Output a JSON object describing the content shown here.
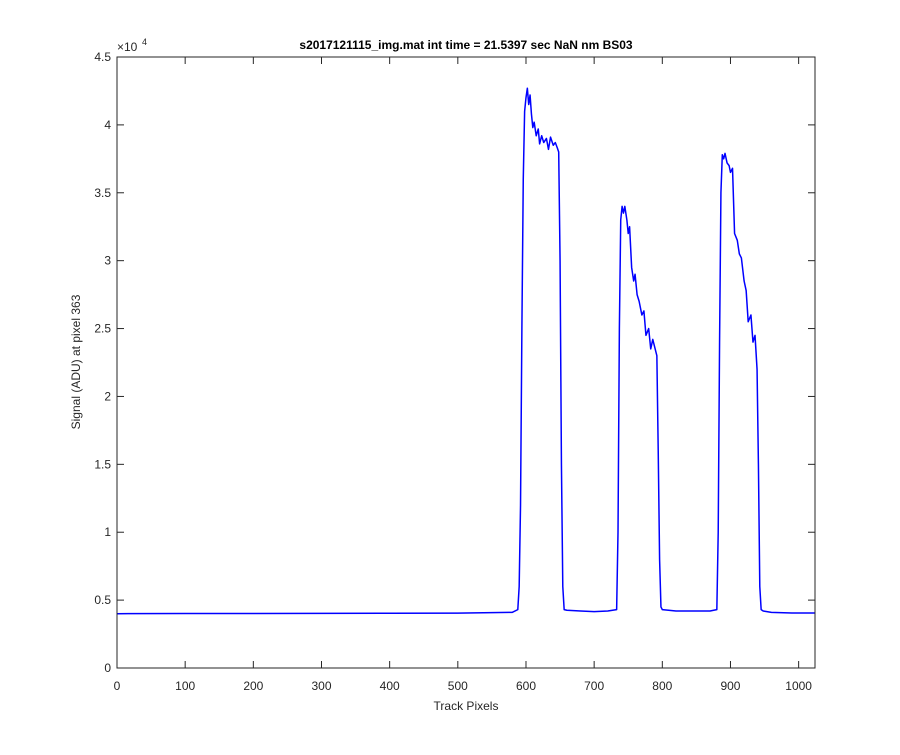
{
  "chart_data": {
    "type": "line",
    "title": "s2017121115_img.mat int time = 21.5397 sec  NaN nm BS03",
    "xlabel": "Track Pixels",
    "ylabel": "Signal (ADU) at pixel 363",
    "exponent_label": "×10",
    "exponent_power": "4",
    "xlim": [
      0,
      1024
    ],
    "ylim": [
      0,
      45000
    ],
    "x_ticks": [
      0,
      100,
      200,
      300,
      400,
      500,
      600,
      700,
      800,
      900,
      1000
    ],
    "x_tick_labels": [
      "0",
      "100",
      "200",
      "300",
      "400",
      "500",
      "600",
      "700",
      "800",
      "900",
      "1000"
    ],
    "y_ticks": [
      0,
      5000,
      10000,
      15000,
      20000,
      25000,
      30000,
      35000,
      40000,
      45000
    ],
    "y_tick_labels": [
      "0",
      "0.5",
      "1",
      "1.5",
      "2",
      "2.5",
      "3",
      "3.5",
      "4",
      "4.5"
    ],
    "grid": false,
    "line_color": "#0000ff",
    "series": [
      {
        "x": [
          0,
          100,
          200,
          300,
          400,
          500,
          580,
          588,
          590,
          592,
          594,
          596,
          598,
          600,
          602,
          604,
          606,
          608,
          610,
          612,
          615,
          618,
          620,
          623,
          626,
          630,
          633,
          636,
          640,
          643,
          646,
          648,
          650,
          652,
          654,
          656,
          660,
          680,
          700,
          720,
          733,
          735,
          737,
          739,
          741,
          743,
          745,
          748,
          750,
          752,
          755,
          758,
          760,
          763,
          766,
          770,
          773,
          776,
          780,
          783,
          786,
          790,
          792,
          794,
          796,
          798,
          800,
          820,
          850,
          870,
          880,
          882,
          884,
          886,
          888,
          890,
          892,
          895,
          898,
          900,
          903,
          906,
          910,
          913,
          916,
          920,
          923,
          926,
          930,
          933,
          936,
          939,
          941,
          943,
          945,
          948,
          960,
          990,
          1024
        ],
        "y": [
          4000,
          4010,
          4010,
          4020,
          4030,
          4040,
          4100,
          4300,
          6000,
          12000,
          25000,
          36000,
          41000,
          42000,
          42700,
          41500,
          42200,
          40800,
          39800,
          40200,
          39200,
          39700,
          38600,
          39200,
          38700,
          39000,
          38200,
          39100,
          38500,
          38700,
          38300,
          38000,
          30000,
          15000,
          6000,
          4300,
          4250,
          4200,
          4150,
          4200,
          4300,
          10000,
          25000,
          33000,
          34000,
          33500,
          34000,
          33000,
          32000,
          32500,
          29500,
          28500,
          29000,
          27500,
          27000,
          26000,
          26300,
          24500,
          25000,
          23500,
          24200,
          23400,
          23000,
          16000,
          8000,
          4500,
          4300,
          4200,
          4200,
          4200,
          4300,
          10000,
          24000,
          35000,
          37800,
          37500,
          37900,
          37200,
          37000,
          36500,
          36800,
          32000,
          31500,
          30500,
          30200,
          28500,
          27800,
          25500,
          26000,
          24000,
          24500,
          22000,
          15000,
          6000,
          4300,
          4200,
          4100,
          4050,
          4050
        ]
      }
    ]
  }
}
